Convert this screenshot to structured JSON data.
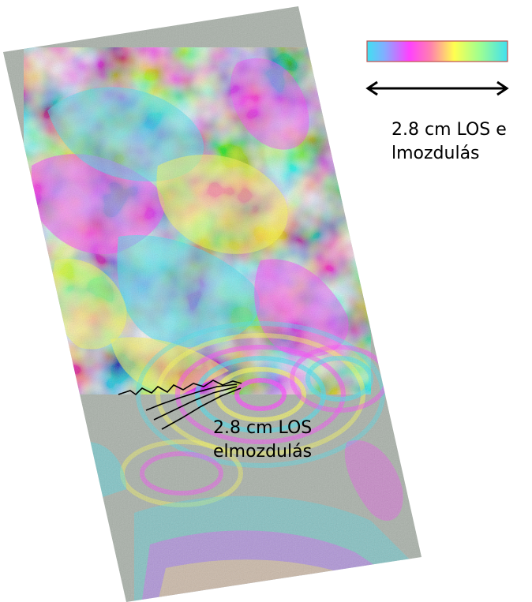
{
  "legend": {
    "colorbar_colors": [
      "#40e0f0",
      "#ff40ff",
      "#ffff50",
      "#40e0f0"
    ],
    "arrow_label": "2.8 cm LOS elmozdulás"
  },
  "annotation": {
    "label": "2.8 cm LOS elmozdulás"
  },
  "image": {
    "background_color": "#a8b0a8",
    "fringe_colors": [
      "#40e0f0",
      "#ff40ff",
      "#ffff50",
      "#a8b0a8"
    ]
  }
}
